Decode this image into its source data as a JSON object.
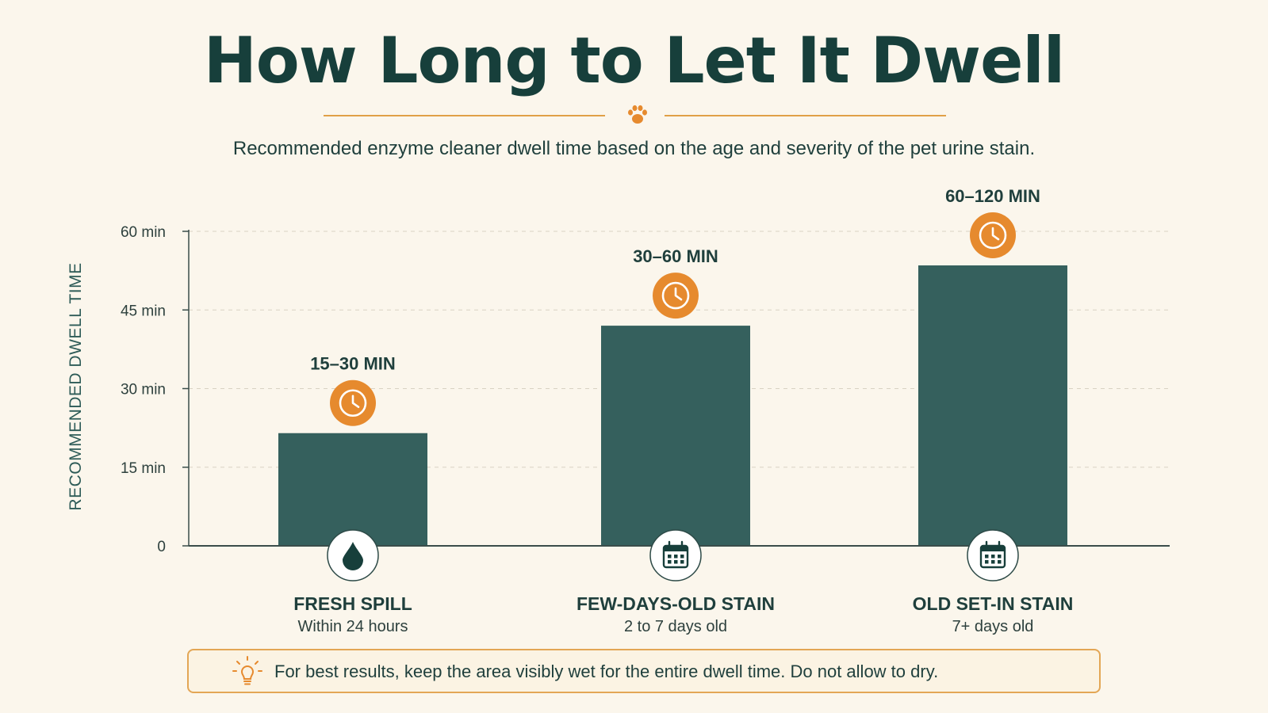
{
  "header": {
    "title": "How Long to Let It Dwell",
    "subtitle": "Recommended enzyme cleaner dwell time based on the age and severity of the pet urine stain."
  },
  "colors": {
    "background": "#fbf6ec",
    "bar": "#35605d",
    "accent": "#e68a2e",
    "title": "#173f3b",
    "divider": "#e0a047"
  },
  "icons": {
    "divider": "paw-icon",
    "bar_top": "clock-icon",
    "tip": "lightbulb-icon"
  },
  "chart_data": {
    "type": "bar",
    "ylabel": "RECOMMENDED DWELL TIME",
    "xlabel": "",
    "ylim": [
      0,
      60
    ],
    "yticks": [
      {
        "value": 0,
        "label": "0"
      },
      {
        "value": 15,
        "label": "15 min"
      },
      {
        "value": 30,
        "label": "30 min"
      },
      {
        "value": 45,
        "label": "45 min"
      },
      {
        "value": 60,
        "label": "60 min"
      }
    ],
    "grid": true,
    "categories": [
      "FRESH SPILL",
      "FEW-DAYS-OLD STAIN",
      "OLD SET-IN STAIN"
    ],
    "sublabels": [
      "Within 24 hours",
      "2 to 7 days old",
      "7+ days old"
    ],
    "value_labels": [
      "15–30 MIN",
      "30–60 MIN",
      "60–120 MIN"
    ],
    "category_icons": [
      "water-drop-icon",
      "calendar-icon",
      "calendar-icon"
    ],
    "values": [
      21.5,
      42,
      53.5
    ]
  },
  "tip": {
    "text": "For best results, keep the area visibly wet for the entire dwell time. Do not allow to dry."
  }
}
